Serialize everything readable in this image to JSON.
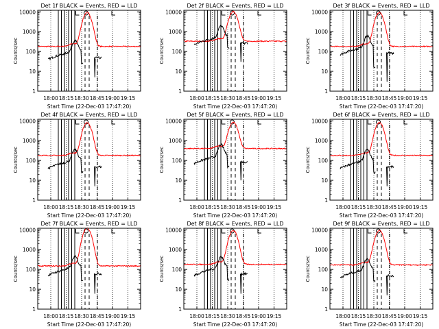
{
  "page": {
    "background": "#ffffff",
    "axis_color": "#000000"
  },
  "chart_data": [
    {
      "type": "line",
      "title": "Det 1f BLACK = Events, RED = LLD",
      "xlabel": "Start Time (22-Dec-03 17:47:20)",
      "ylabel": "Counts/sec",
      "x_ticks": [
        "18:00",
        "18:15",
        "18:30",
        "18:45",
        "19:00",
        "19:15"
      ],
      "y_ticks": [
        "1",
        "10",
        "100",
        "1000",
        "10000"
      ],
      "ylim": [
        1,
        12000
      ],
      "y_scale": "log",
      "series": [
        {
          "name": "Events",
          "color": "#000000",
          "level": 40,
          "gap_dip": 25
        },
        {
          "name": "LLD",
          "color": "#ff0000",
          "level": 180,
          "peak": 9000
        }
      ]
    },
    {
      "type": "line",
      "title": "Det 2f BLACK = Events, RED = LLD",
      "xlabel": "Start Time (22-Dec-03 17:47:20)",
      "ylabel": "Counts/sec",
      "x_ticks": [
        "18:00",
        "18:15",
        "18:30",
        "18:45",
        "19:00",
        "19:15"
      ],
      "y_ticks": [
        "1",
        "10",
        "100",
        "1000",
        "10000"
      ],
      "ylim": [
        1,
        12000
      ],
      "y_scale": "log",
      "series": [
        {
          "name": "Events",
          "color": "#000000",
          "level": 220,
          "gap_dip": 150
        },
        {
          "name": "LLD",
          "color": "#ff0000",
          "level": 330,
          "peak": 10000
        }
      ]
    },
    {
      "type": "line",
      "title": "Det 3f BLACK = Events, RED = LLD",
      "xlabel": "Start Time (22-Dec-03 17:47:20)",
      "ylabel": "Counts/sec",
      "x_ticks": [
        "18:00",
        "18:15",
        "18:30",
        "18:45",
        "19:00",
        "19:15"
      ],
      "y_ticks": [
        "1",
        "10",
        "100",
        "1000",
        "10000"
      ],
      "ylim": [
        1,
        12000
      ],
      "y_scale": "log",
      "series": [
        {
          "name": "Events",
          "color": "#000000",
          "level": 70,
          "gap_dip": 15
        },
        {
          "name": "LLD",
          "color": "#ff0000",
          "level": 180,
          "peak": 9000
        }
      ]
    },
    {
      "type": "line",
      "title": "Det 4f BLACK = Events, RED = LLD",
      "xlabel": "Start Time (22-Dec-03 17:47:20)",
      "ylabel": "Counts/sec",
      "x_ticks": [
        "18:00",
        "18:15",
        "18:30",
        "18:45",
        "19:00",
        "19:15"
      ],
      "y_ticks": [
        "1",
        "10",
        "100",
        "1000",
        "10000"
      ],
      "ylim": [
        1,
        12000
      ],
      "y_scale": "log",
      "series": [
        {
          "name": "Events",
          "color": "#000000",
          "level": 40,
          "gap_dip": 25
        },
        {
          "name": "LLD",
          "color": "#ff0000",
          "level": 180,
          "peak": 8000
        }
      ]
    },
    {
      "type": "line",
      "title": "Det 5f BLACK = Events, RED = LLD",
      "xlabel": "Start Time (22-Dec-03 17:47:20)",
      "ylabel": "Counts/sec",
      "x_ticks": [
        "18:00",
        "18:15",
        "18:30",
        "18:45",
        "19:00",
        "19:15"
      ],
      "y_ticks": [
        "1",
        "10",
        "100",
        "1000",
        "10000"
      ],
      "ylim": [
        1,
        12000
      ],
      "y_scale": "log",
      "series": [
        {
          "name": "Events",
          "color": "#000000",
          "level": 70,
          "gap_dip": 50
        },
        {
          "name": "LLD",
          "color": "#ff0000",
          "level": 400,
          "peak": 8000
        }
      ]
    },
    {
      "type": "line",
      "title": "Det 6f BLACK = Events, RED = LLD",
      "xlabel": "Start Time (22-Dec-03 17:47:20)",
      "ylabel": "Counts/sec",
      "x_ticks": [
        "18:00",
        "18:15",
        "18:30",
        "18:45",
        "19:00",
        "19:15"
      ],
      "y_ticks": [
        "1",
        "10",
        "100",
        "1000",
        "10000"
      ],
      "ylim": [
        1,
        12000
      ],
      "y_scale": "log",
      "series": [
        {
          "name": "Events",
          "color": "#000000",
          "level": 40,
          "gap_dip": 25
        },
        {
          "name": "LLD",
          "color": "#ff0000",
          "level": 180,
          "peak": 8000
        }
      ]
    },
    {
      "type": "line",
      "title": "Det 7f BLACK = Events, RED = LLD",
      "xlabel": "Start Time (22-Dec-03 17:47:20)",
      "ylabel": "Counts/sec",
      "x_ticks": [
        "18:00",
        "18:15",
        "18:30",
        "18:45",
        "19:00",
        "19:15"
      ],
      "y_ticks": [
        "1",
        "10",
        "100",
        "1000",
        "10000"
      ],
      "ylim": [
        1,
        12000
      ],
      "y_scale": "log",
      "series": [
        {
          "name": "Events",
          "color": "#000000",
          "level": 50,
          "gap_dip": 30
        },
        {
          "name": "LLD",
          "color": "#ff0000",
          "level": 150,
          "peak": 12000
        }
      ]
    },
    {
      "type": "line",
      "title": "Det 8f BLACK = Events, RED = LLD",
      "xlabel": "Start Time (22-Dec-03 17:47:20)",
      "ylabel": "Counts/sec",
      "x_ticks": [
        "18:00",
        "18:15",
        "18:30",
        "18:45",
        "19:00",
        "19:15"
      ],
      "y_ticks": [
        "1",
        "10",
        "100",
        "1000",
        "10000"
      ],
      "ylim": [
        1,
        12000
      ],
      "y_scale": "log",
      "series": [
        {
          "name": "Events",
          "color": "#000000",
          "level": 50,
          "gap_dip": 30
        },
        {
          "name": "LLD",
          "color": "#ff0000",
          "level": 180,
          "peak": 9000
        }
      ]
    },
    {
      "type": "line",
      "title": "Det 9f BLACK = Events, RED = LLD",
      "xlabel": "Start Time (22-Dec-03 17:47:20)",
      "ylabel": "Counts/sec",
      "x_ticks": [
        "18:00",
        "18:15",
        "18:30",
        "18:45",
        "19:00",
        "19:15"
      ],
      "y_ticks": [
        "1",
        "10",
        "100",
        "1000",
        "10000"
      ],
      "ylim": [
        1,
        12000
      ],
      "y_scale": "log",
      "series": [
        {
          "name": "Events",
          "color": "#000000",
          "level": 40,
          "gap_dip": 25
        },
        {
          "name": "LLD",
          "color": "#ff0000",
          "level": 170,
          "peak": 9000
        }
      ]
    }
  ]
}
